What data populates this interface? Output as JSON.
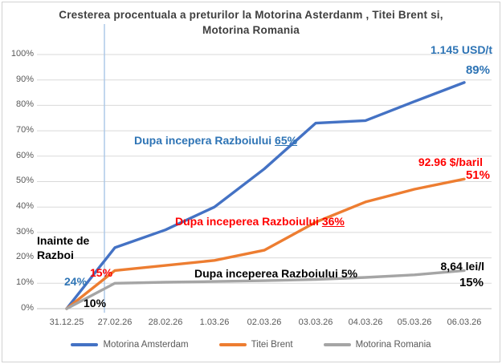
{
  "title_lines": [
    "Cresterea procentuala a preturilor la Motorina Asterdanm , Titei Brent si,",
    "Motorina Romania"
  ],
  "colors": {
    "line_blue": "#4472C4",
    "line_orange": "#ED7D31",
    "line_gray": "#A5A5A5",
    "text_blue": "#2E74B5",
    "text_red": "#FF0000",
    "text_black": "#000000",
    "marker_line": "#A9C6E7",
    "gridline": "#D9D9D9",
    "axis_line": "#BFBFBF",
    "axis_text": "#595959",
    "title_text": "#3F3F3F"
  },
  "chart_data": {
    "type": "line",
    "title": "Cresterea procentuala a preturilor la Motorina Asterdanm , Titei Brent si, Motorina Romania",
    "categories": [
      "31.12.25",
      "27.02.26",
      "28.02.26",
      "1.03.26",
      "02.03.26",
      "03.03.26",
      "04.03.26",
      "05.03.26",
      "06.03.26"
    ],
    "yticks": [
      "100%",
      "90%",
      "80%",
      "70%",
      "60%",
      "50%",
      "40%",
      "30%",
      "20%",
      "10%",
      "0%"
    ],
    "ylim": [
      0,
      100
    ],
    "ytick_step": 10,
    "grid": true,
    "legend_position": "bottom",
    "war_start_marker_category": "27.02.26",
    "series": [
      {
        "name": "Motorina Amsterdam",
        "color": "#4472C4",
        "values": [
          0,
          24,
          31,
          40,
          55,
          73,
          74,
          81.5,
          89
        ]
      },
      {
        "name": "Titei Brent",
        "color": "#ED7D31",
        "values": [
          0,
          15,
          17,
          19,
          23,
          34,
          42,
          47,
          51
        ]
      },
      {
        "name": "Motorina Romania",
        "color": "#A5A5A5",
        "values": [
          0,
          10,
          10.4,
          10.7,
          11,
          11.5,
          12.3,
          13.3,
          15
        ]
      }
    ]
  },
  "annotations": {
    "price_usd": {
      "text": "1.145 USD/t"
    },
    "amsterdam_final": {
      "text": "89%"
    },
    "amsterdam_war": {
      "prefix": "Dupa incepera Razboiului ",
      "value": "65%"
    },
    "brent_price": {
      "text": "92.96 $/baril"
    },
    "brent_final": {
      "text": "51%"
    },
    "brent_war": {
      "prefix": "Dupa inceperea Razboiului ",
      "value": "36%"
    },
    "before_war": {
      "text": "Inainte de Razboi"
    },
    "amsterdam_start": {
      "text": "24%"
    },
    "brent_start": {
      "text": "15%"
    },
    "romania_start": {
      "text": "10%"
    },
    "romania_war": {
      "text": "Dupa inceperea Razboiului 5%"
    },
    "romania_price": {
      "text": "8,64 lei/l"
    },
    "romania_final": {
      "text": "15%"
    }
  }
}
